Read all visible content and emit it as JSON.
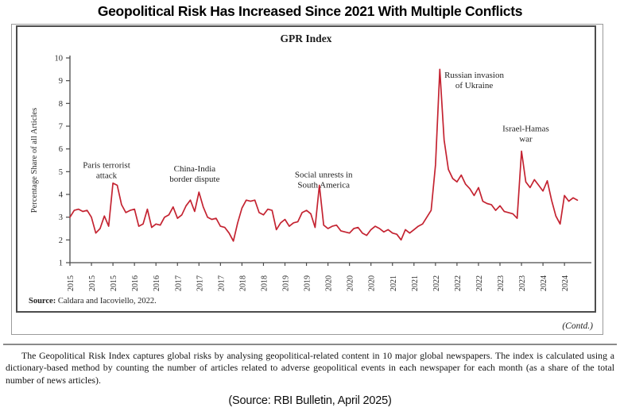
{
  "page": {
    "title": "Geopolitical Risk Has Increased Since 2021 With Multiple Conflicts",
    "contd": "(Contd.)",
    "description": "The Geopolitical Risk Index captures global risks by analysing geopolitical-related content in 10 major global newspapers. The index is calculated using a dictionary-based method by counting the number of articles related to adverse geopolitical events in each newspaper for each month (as a share of the total number of news articles).",
    "source_caption": "(Source: RBI Bulletin, April 2025)"
  },
  "chart_data": {
    "type": "line",
    "title": "GPR Index",
    "xlabel": "",
    "ylabel": "Percentage Share of all Articles",
    "ylim": [
      1,
      10
    ],
    "y_ticks": [
      1,
      2,
      3,
      4,
      5,
      6,
      7,
      8,
      9,
      10
    ],
    "grid": false,
    "legend_position": "none",
    "x_start": "2015-01",
    "x_end": "2024-11",
    "x_frequency": "monthly",
    "x_tick_months": [
      0,
      5,
      10,
      15,
      20,
      25,
      30,
      35,
      40,
      45,
      50,
      55,
      60,
      65,
      70,
      75,
      80,
      85,
      90,
      95,
      100,
      105,
      110,
      115
    ],
    "x_tick_labels": [
      "2015",
      "2015",
      "2015",
      "2016",
      "2016",
      "2017",
      "2017",
      "2017",
      "2018",
      "2018",
      "2019",
      "2019",
      "2020",
      "2020",
      "2020",
      "2021",
      "2021",
      "2022",
      "2022",
      "2022",
      "2023",
      "2023",
      "2024",
      "2024"
    ],
    "line_color": "#c42331",
    "series": [
      {
        "name": "GPR Index",
        "values": [
          3.0,
          3.3,
          3.35,
          3.25,
          3.3,
          3.0,
          2.3,
          2.5,
          3.05,
          2.6,
          4.5,
          4.4,
          3.55,
          3.2,
          3.3,
          3.35,
          2.6,
          2.7,
          3.35,
          2.55,
          2.7,
          2.65,
          3.0,
          3.1,
          3.45,
          2.95,
          3.1,
          3.5,
          3.75,
          3.25,
          4.1,
          3.45,
          3.0,
          2.9,
          2.95,
          2.6,
          2.55,
          2.3,
          1.95,
          2.75,
          3.4,
          3.75,
          3.7,
          3.75,
          3.2,
          3.1,
          3.35,
          3.3,
          2.45,
          2.75,
          2.9,
          2.6,
          2.75,
          2.8,
          3.2,
          3.3,
          3.15,
          2.55,
          4.4,
          2.65,
          2.5,
          2.6,
          2.65,
          2.4,
          2.35,
          2.3,
          2.5,
          2.55,
          2.3,
          2.2,
          2.45,
          2.6,
          2.5,
          2.35,
          2.45,
          2.3,
          2.25,
          2.0,
          2.45,
          2.3,
          2.45,
          2.6,
          2.7,
          3.0,
          3.3,
          5.3,
          9.5,
          6.4,
          5.1,
          4.7,
          4.55,
          4.85,
          4.45,
          4.25,
          3.95,
          4.3,
          3.7,
          3.6,
          3.55,
          3.3,
          3.5,
          3.25,
          3.2,
          3.15,
          2.95,
          5.9,
          4.55,
          4.3,
          4.65,
          4.4,
          4.15,
          4.6,
          3.75,
          3.05,
          2.7,
          3.95,
          3.7,
          3.85,
          3.75
        ]
      }
    ],
    "annotations": [
      {
        "lines": [
          "Paris terrorist",
          "attack"
        ],
        "month": 8.5,
        "value": 5.1
      },
      {
        "lines": [
          "China-India",
          "border dispute"
        ],
        "month": 29,
        "value": 4.95
      },
      {
        "lines": [
          "Social unrests in",
          "South America"
        ],
        "month": 59,
        "value": 4.68
      },
      {
        "lines": [
          "Russian invasion",
          "of Ukraine"
        ],
        "month": 94,
        "value": 9.05
      },
      {
        "lines": [
          "Israel-Hamas",
          "war"
        ],
        "month": 106,
        "value": 6.7
      }
    ],
    "source_note_label": "Source:",
    "source_note": " Caldara and Iacoviello, 2022."
  }
}
